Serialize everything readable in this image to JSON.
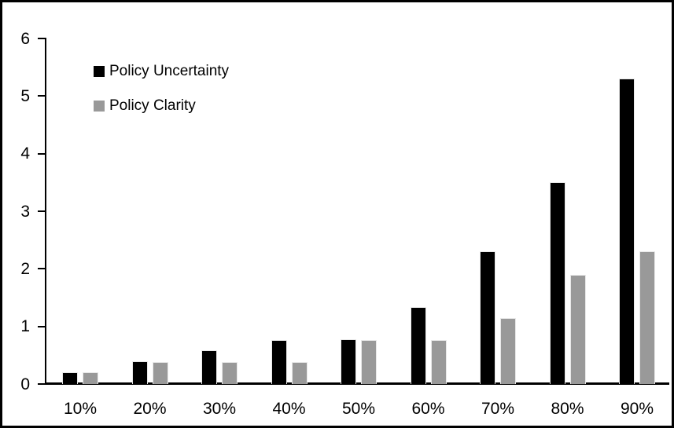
{
  "chart_data": {
    "type": "bar",
    "categories": [
      "10%",
      "20%",
      "30%",
      "40%",
      "50%",
      "60%",
      "70%",
      "80%",
      "90%"
    ],
    "series": [
      {
        "name": "Policy Uncertainty",
        "color": "#000000",
        "values": [
          0.2,
          0.4,
          0.58,
          0.76,
          0.78,
          1.33,
          2.3,
          3.5,
          5.3
        ]
      },
      {
        "name": "Policy Clarity",
        "color": "#999999",
        "values": [
          0.2,
          0.38,
          0.38,
          0.38,
          0.77,
          0.77,
          1.15,
          1.9,
          2.3
        ]
      }
    ],
    "ylim": [
      0,
      6
    ],
    "yticks": [
      0,
      1,
      2,
      3,
      4,
      5,
      6
    ],
    "grid": false,
    "legend_position": "inside-top-left",
    "plot_background": "#ffffff",
    "axis_color": "#000000",
    "frame_border_color": "#000000"
  }
}
